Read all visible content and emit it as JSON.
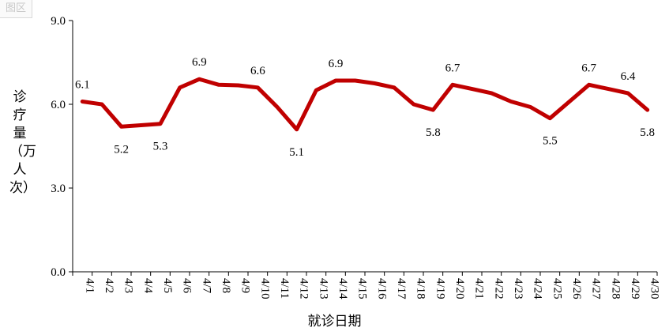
{
  "corner_tag": "图区",
  "chart_data": {
    "type": "line",
    "title": "",
    "xlabel": "就诊日期",
    "ylabel": "诊疗量（万人次）",
    "ylim": [
      0,
      9
    ],
    "yticks": [
      "0.0",
      "3.0",
      "6.0",
      "9.0"
    ],
    "categories": [
      "4/1",
      "4/2",
      "4/3",
      "4/4",
      "4/5",
      "4/6",
      "4/7",
      "4/8",
      "4/9",
      "4/10",
      "4/11",
      "4/12",
      "4/13",
      "4/14",
      "4/15",
      "4/16",
      "4/17",
      "4/18",
      "4/19",
      "4/20",
      "4/21",
      "4/22",
      "4/23",
      "4/24",
      "4/25",
      "4/26",
      "4/27",
      "4/28",
      "4/29",
      "4/30"
    ],
    "series": [
      {
        "values": [
          6.1,
          6.0,
          5.2,
          5.25,
          5.3,
          6.6,
          6.9,
          6.7,
          6.68,
          6.6,
          5.9,
          5.1,
          6.5,
          6.85,
          6.85,
          6.75,
          6.6,
          6.0,
          5.8,
          6.7,
          6.55,
          6.4,
          6.1,
          5.9,
          5.5,
          6.1,
          6.7,
          6.55,
          6.4,
          5.8
        ],
        "color": "#c00000"
      }
    ],
    "data_labels": [
      {
        "index": 0,
        "text": "6.1",
        "pos": "above"
      },
      {
        "index": 2,
        "text": "5.2",
        "pos": "below"
      },
      {
        "index": 4,
        "text": "5.3",
        "pos": "below"
      },
      {
        "index": 6,
        "text": "6.9",
        "pos": "above"
      },
      {
        "index": 9,
        "text": "6.6",
        "pos": "above"
      },
      {
        "index": 11,
        "text": "5.1",
        "pos": "below"
      },
      {
        "index": 13,
        "text": "6.9",
        "pos": "above"
      },
      {
        "index": 18,
        "text": "5.8",
        "pos": "below"
      },
      {
        "index": 19,
        "text": "6.7",
        "pos": "above"
      },
      {
        "index": 24,
        "text": "5.5",
        "pos": "below"
      },
      {
        "index": 26,
        "text": "6.7",
        "pos": "above"
      },
      {
        "index": 28,
        "text": "6.4",
        "pos": "above"
      },
      {
        "index": 29,
        "text": "5.8",
        "pos": "below"
      }
    ],
    "grid": false,
    "legend": "none"
  }
}
